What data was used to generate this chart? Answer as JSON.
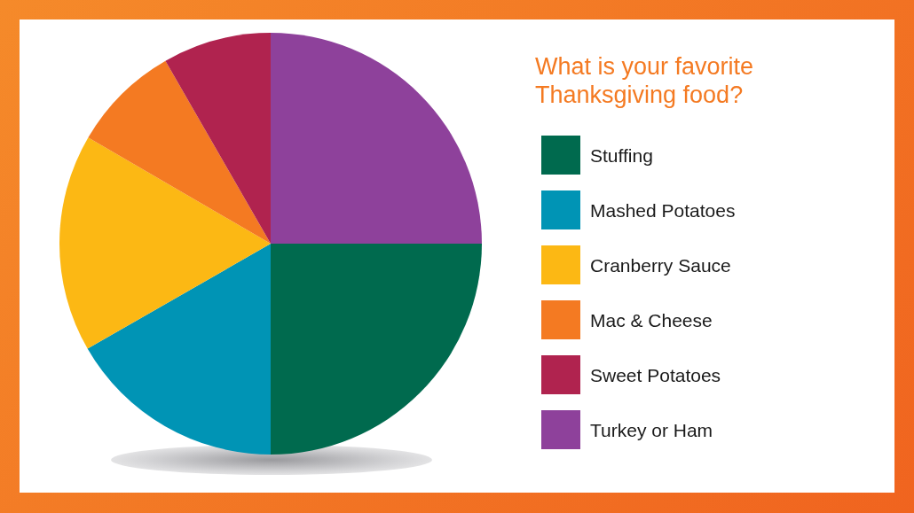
{
  "chart_data": {
    "type": "pie",
    "title": "What is your favorite Thanksgiving food?",
    "categories": [
      "Stuffing",
      "Mashed Potatoes",
      "Cranberry Sauce",
      "Mac & Cheese",
      "Sweet Potatoes",
      "Turkey or Ham"
    ],
    "values": [
      25,
      16.7,
      16.7,
      8.3,
      8.3,
      25
    ],
    "colors": [
      "#006a4e",
      "#0094b5",
      "#fcb814",
      "#f47a22",
      "#b0234f",
      "#8e419b"
    ],
    "legend": "right"
  }
}
